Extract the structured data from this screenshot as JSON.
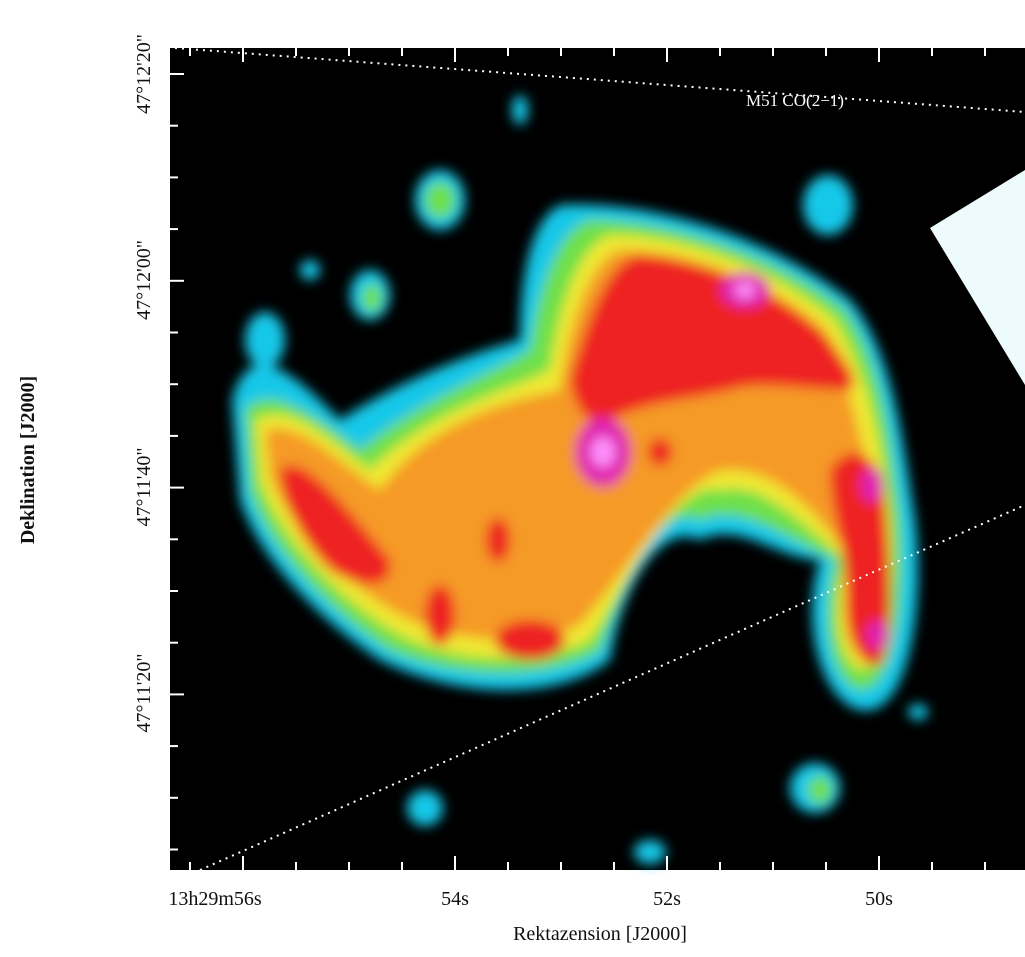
{
  "figure": {
    "annotation": "M51 CO(2−1)",
    "x_axis": {
      "label": "Rektazension [J2000]",
      "tick_labels": [
        "13h29m56s",
        "54s",
        "52s",
        "50s"
      ]
    },
    "y_axis": {
      "label": "Deklination [J2000]",
      "tick_labels": [
        "47°12'20\"",
        "47°12'00\"",
        "47°11'40\"",
        "47°11'20\""
      ]
    }
  }
}
